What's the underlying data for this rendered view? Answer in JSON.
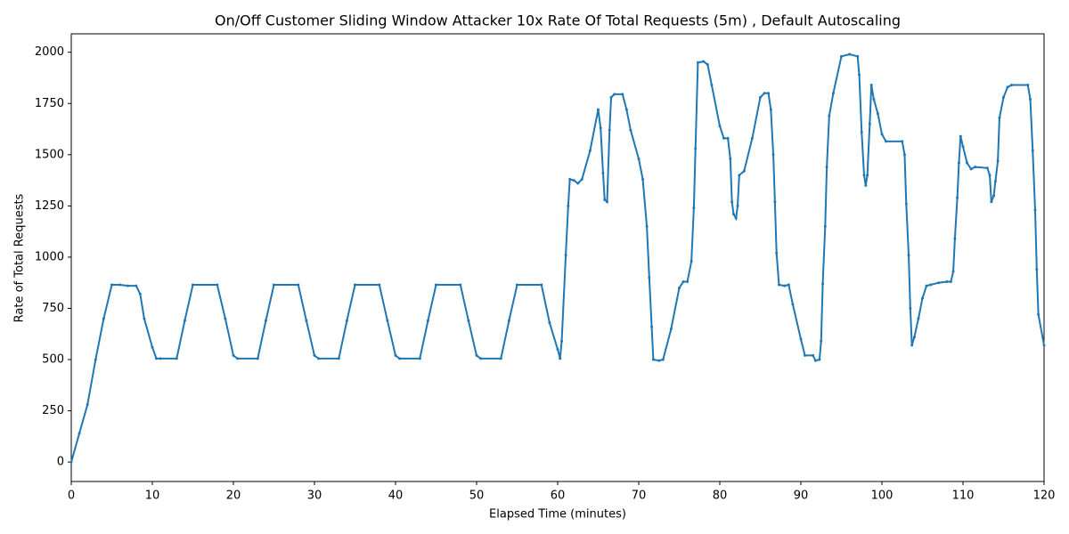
{
  "chart_data": {
    "type": "line",
    "title": "On/Off Customer Sliding Window Attacker 10x Rate Of Total Requests (5m) , Default Autoscaling",
    "x_label": "Elapsed Time (minutes)",
    "y_label": "Rate of Total Requests",
    "color": "#1f77b4",
    "xlim": [
      0,
      120
    ],
    "ylim": [
      -95,
      2090
    ],
    "xticks": [
      0,
      10,
      20,
      30,
      40,
      50,
      60,
      70,
      80,
      90,
      100,
      110,
      120
    ],
    "yticks": [
      0,
      250,
      500,
      750,
      1000,
      1250,
      1500,
      1750,
      2000
    ],
    "x": [
      0,
      1,
      2,
      3,
      4,
      5,
      6,
      7,
      8,
      8.5,
      9,
      10,
      10.5,
      11,
      13,
      14,
      15,
      18,
      19,
      20,
      20.5,
      23,
      24,
      25,
      28,
      29,
      30,
      30.5,
      33,
      34,
      35,
      38,
      39,
      40,
      40.5,
      43,
      44,
      45,
      48,
      49,
      50,
      50.5,
      53,
      54,
      55,
      58,
      59,
      60,
      60.3,
      60.5,
      61,
      61.3,
      61.5,
      62,
      62.5,
      63,
      64,
      65,
      65.3,
      65.6,
      65.8,
      66.1,
      66.4,
      66.6,
      67,
      68,
      68.5,
      69,
      70,
      70.5,
      71,
      71.3,
      71.6,
      71.8,
      72.5,
      73,
      74,
      75,
      75.5,
      76,
      76.5,
      76.8,
      77,
      77.3,
      78,
      78.5,
      79,
      80,
      80.5,
      81,
      81.3,
      81.5,
      81.7,
      82,
      82.2,
      82.4,
      83,
      84,
      85,
      85.5,
      86,
      86.3,
      86.6,
      86.8,
      87,
      87.3,
      88,
      88.5,
      89,
      90,
      90.5,
      91.5,
      91.8,
      92.3,
      92.5,
      92.7,
      93,
      93.2,
      93.5,
      94,
      95,
      96,
      97,
      97.2,
      97.5,
      97.8,
      98,
      98.2,
      98.5,
      98.7,
      99,
      99.5,
      100,
      100.5,
      102.5,
      102.8,
      103,
      103.3,
      103.5,
      103.7,
      104,
      104.5,
      105,
      105.5,
      106,
      107,
      108,
      108.5,
      108.8,
      109,
      109.3,
      109.5,
      109.7,
      110,
      110.5,
      111,
      111.5,
      113,
      113.3,
      113.5,
      113.8,
      114,
      114.3,
      114.5,
      115,
      115.5,
      116,
      118,
      118.3,
      118.6,
      118.9,
      119.1,
      119.3,
      120
    ],
    "values": [
      0,
      140,
      280,
      500,
      700,
      865,
      865,
      860,
      860,
      820,
      700,
      560,
      505,
      505,
      505,
      690,
      865,
      865,
      700,
      520,
      505,
      505,
      690,
      865,
      865,
      690,
      520,
      505,
      505,
      690,
      865,
      865,
      690,
      520,
      505,
      505,
      690,
      865,
      865,
      690,
      520,
      505,
      505,
      690,
      865,
      865,
      680,
      550,
      505,
      590,
      1010,
      1250,
      1380,
      1375,
      1360,
      1380,
      1520,
      1720,
      1630,
      1410,
      1280,
      1270,
      1620,
      1780,
      1795,
      1795,
      1720,
      1620,
      1480,
      1380,
      1150,
      900,
      660,
      500,
      495,
      500,
      650,
      850,
      880,
      880,
      980,
      1240,
      1530,
      1950,
      1955,
      1940,
      1840,
      1640,
      1580,
      1580,
      1480,
      1270,
      1210,
      1190,
      1250,
      1400,
      1420,
      1580,
      1780,
      1800,
      1800,
      1720,
      1500,
      1270,
      1020,
      865,
      860,
      865,
      770,
      600,
      520,
      520,
      495,
      500,
      590,
      870,
      1150,
      1440,
      1690,
      1800,
      1980,
      1990,
      1980,
      1890,
      1610,
      1400,
      1350,
      1400,
      1650,
      1840,
      1770,
      1700,
      1600,
      1565,
      1565,
      1500,
      1260,
      1010,
      750,
      570,
      610,
      700,
      800,
      860,
      865,
      875,
      880,
      880,
      930,
      1090,
      1290,
      1460,
      1590,
      1540,
      1460,
      1430,
      1440,
      1435,
      1400,
      1270,
      1300,
      1370,
      1470,
      1680,
      1780,
      1830,
      1840,
      1840,
      1770,
      1520,
      1230,
      940,
      720,
      570
    ]
  }
}
